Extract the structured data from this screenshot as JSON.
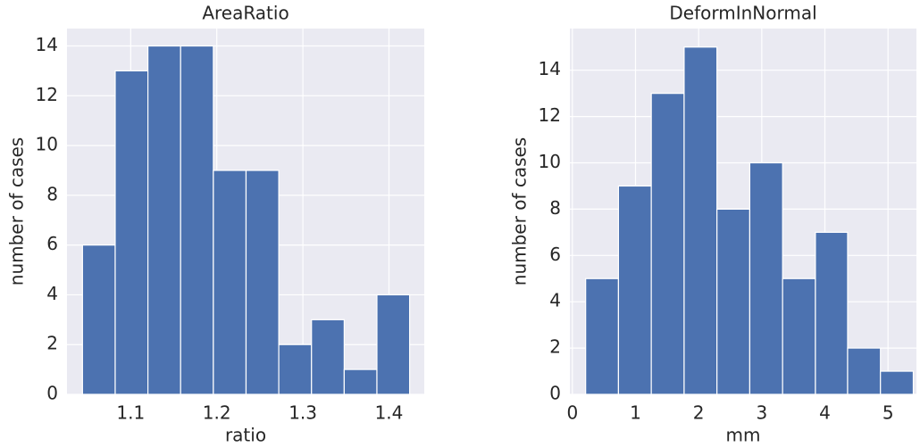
{
  "chart_data": [
    {
      "type": "histogram",
      "title": "AreaRatio",
      "x_label": "ratio",
      "y_label": "number of cases",
      "color": "#4c72b0",
      "grid": true,
      "bins": [
        1.044,
        1.082,
        1.12,
        1.158,
        1.196,
        1.234,
        1.272,
        1.31,
        1.348,
        1.386,
        1.424
      ],
      "values": [
        6,
        13,
        14,
        14,
        9,
        9,
        2,
        3,
        1,
        4
      ],
      "xlim": [
        1.026,
        1.441
      ],
      "xticks": [
        1.1,
        1.2,
        1.3,
        1.4
      ],
      "ylim": [
        0,
        14.7
      ],
      "yticks": [
        0,
        2,
        4,
        6,
        8,
        10,
        12,
        14
      ]
    },
    {
      "type": "histogram",
      "title": "DeformInNormal",
      "x_label": "mm",
      "y_label": "number of cases",
      "color": "#4c72b0",
      "grid": true,
      "bins": [
        0.21,
        0.73,
        1.25,
        1.77,
        2.29,
        2.81,
        3.33,
        3.85,
        4.36,
        4.88,
        5.4
      ],
      "values": [
        5,
        9,
        13,
        15,
        8,
        10,
        5,
        7,
        2,
        1
      ],
      "xlim": [
        -0.04,
        5.45
      ],
      "xticks": [
        0,
        1,
        2,
        3,
        4,
        5
      ],
      "ylim": [
        0,
        15.8
      ],
      "yticks": [
        0,
        2,
        4,
        6,
        8,
        10,
        12,
        14
      ]
    }
  ]
}
